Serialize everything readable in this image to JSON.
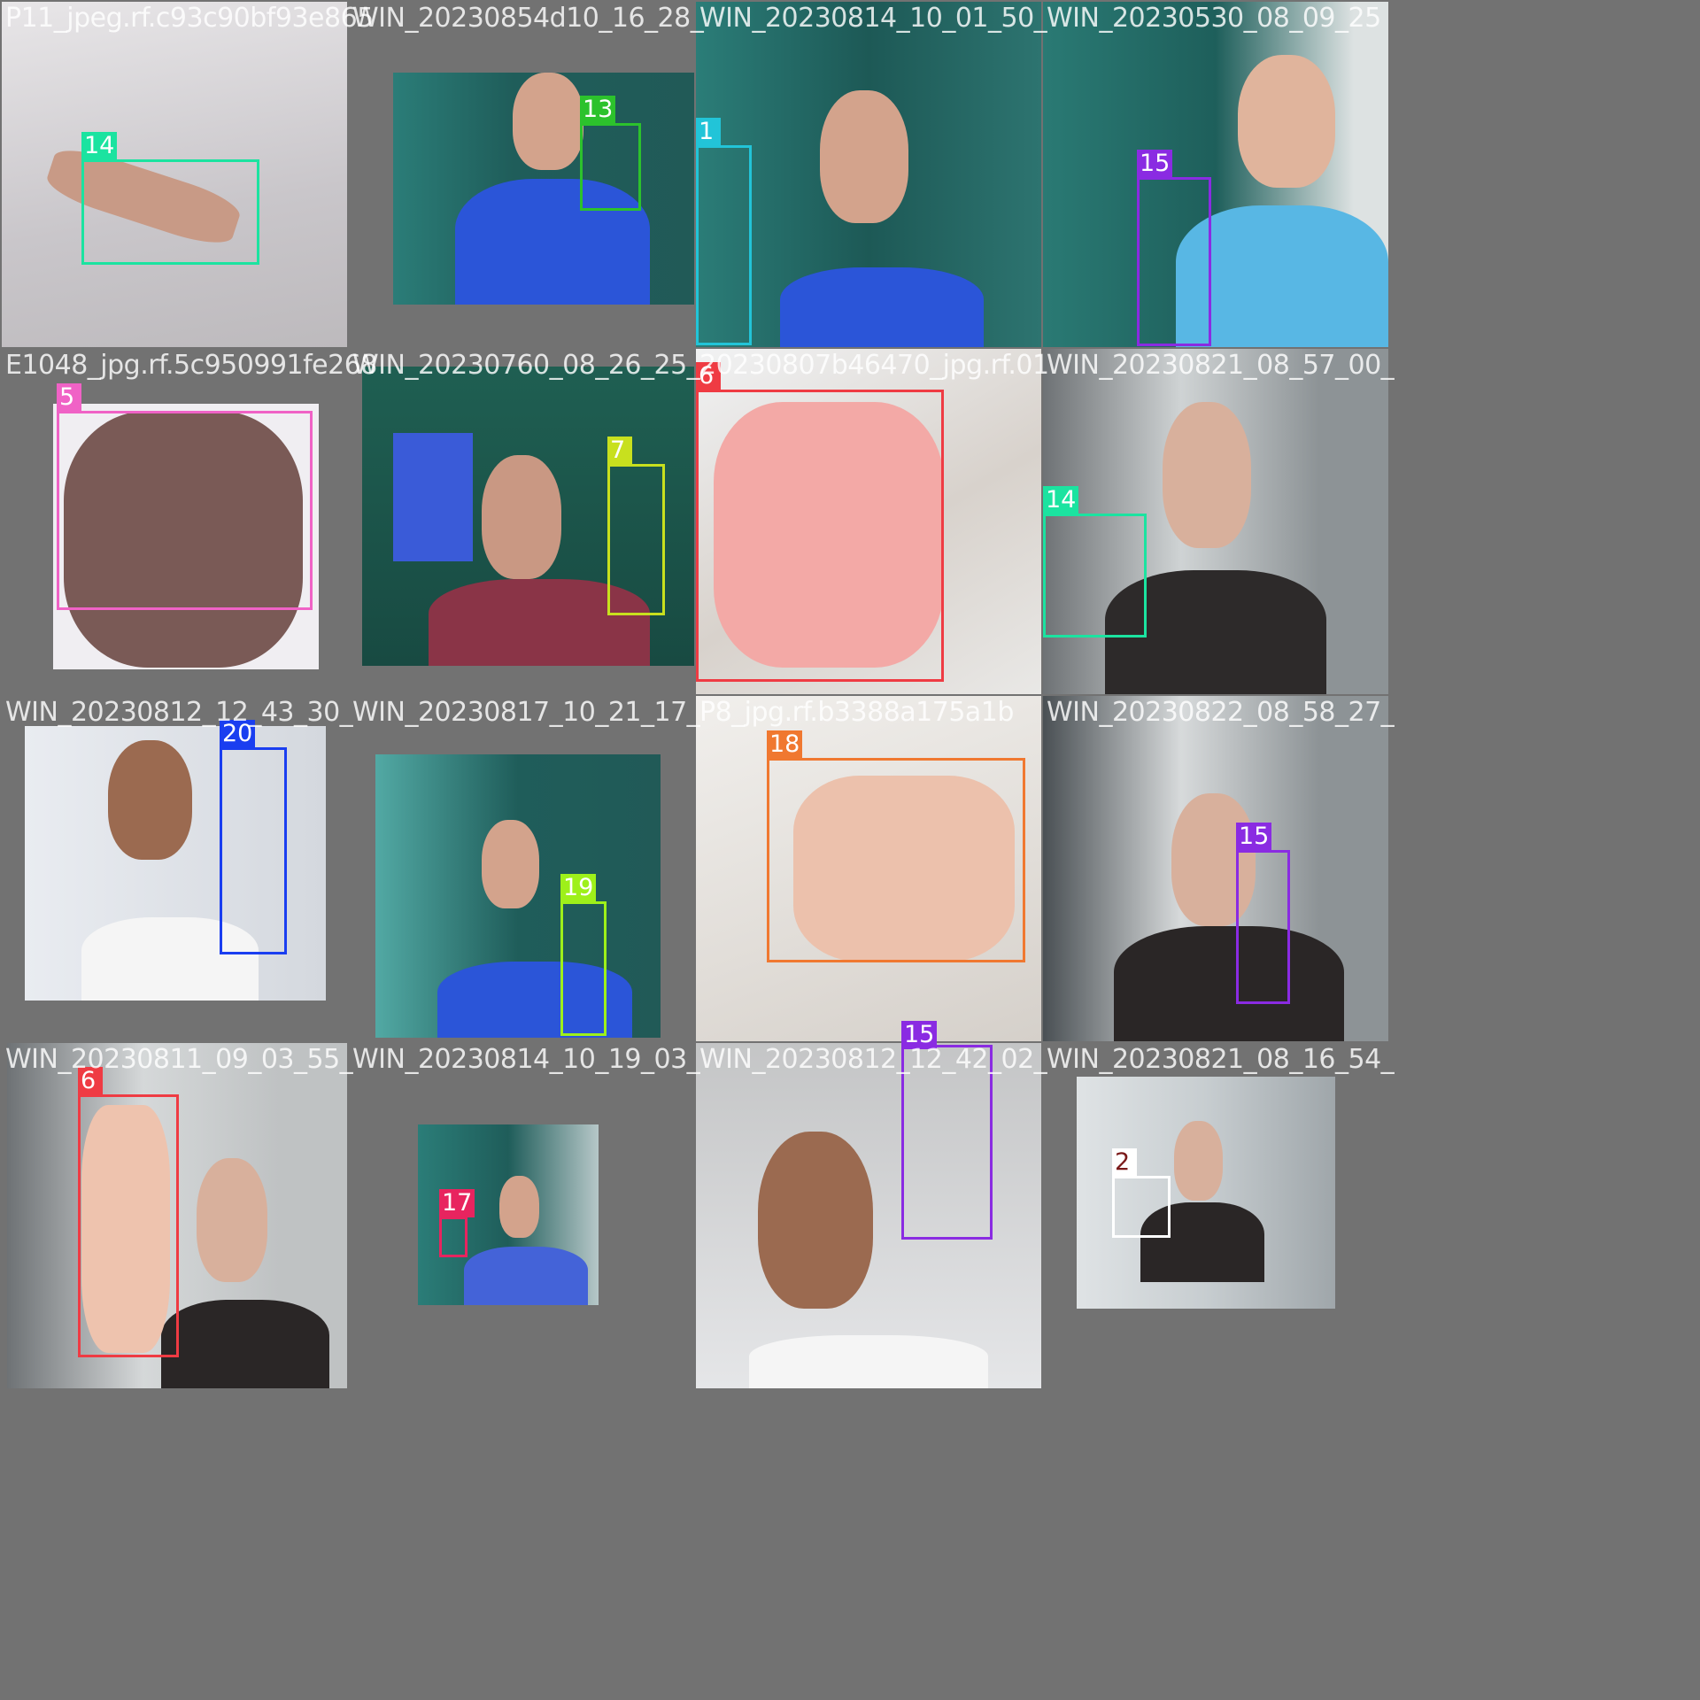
{
  "colors": {
    "class_1": "#22c4d8",
    "class_2": "#ffffff",
    "class_5": "#f062c6",
    "class_6": "#ef3b43",
    "class_7": "#c8e01e",
    "class_13": "#2cc22c",
    "class_14": "#1be3a0",
    "class_15": "#8a2be2",
    "class_17": "#e8245f",
    "class_18": "#f07830",
    "class_19": "#9ef01a",
    "class_20": "#1a3ef0"
  },
  "tiles": [
    {
      "caption": "P11_jpeg.rf.c93c90bf93e865",
      "labels": [
        "14"
      ]
    },
    {
      "caption": "WIN_20230854d10_16_28_",
      "labels": [
        "13"
      ]
    },
    {
      "caption": "WIN_20230814_10_01_50_",
      "labels": [
        "1"
      ]
    },
    {
      "caption": "WIN_20230530_08_09_25",
      "labels": [
        "15"
      ]
    },
    {
      "caption": "E1048_jpg.rf.5c950991fe268",
      "labels": [
        "5"
      ]
    },
    {
      "caption": "WIN_20230760_08_26_25_",
      "labels": [
        "7"
      ]
    },
    {
      "caption": "20230807b46470_jpg.rf.01",
      "labels": [
        "6"
      ]
    },
    {
      "caption": "WIN_20230821_08_57_00_",
      "labels": [
        "14"
      ]
    },
    {
      "caption": "WIN_20230812_12_43_30_",
      "labels": [
        "20"
      ]
    },
    {
      "caption": "WIN_20230817_10_21_17_",
      "labels": [
        "19"
      ]
    },
    {
      "caption": "P8_jpg.rf.b3388a175a1b",
      "labels": [
        "18"
      ]
    },
    {
      "caption": "WIN_20230822_08_58_27_",
      "labels": [
        "15"
      ]
    },
    {
      "caption": "WIN_20230811_09_03_55_",
      "labels": [
        "6"
      ]
    },
    {
      "caption": "WIN_20230814_10_19_03_",
      "labels": [
        "17"
      ]
    },
    {
      "caption": "WIN_20230812_12_42_02_",
      "labels": [
        "15"
      ]
    },
    {
      "caption": "WIN_20230821_08_16_54_",
      "labels": [
        "2"
      ]
    }
  ]
}
